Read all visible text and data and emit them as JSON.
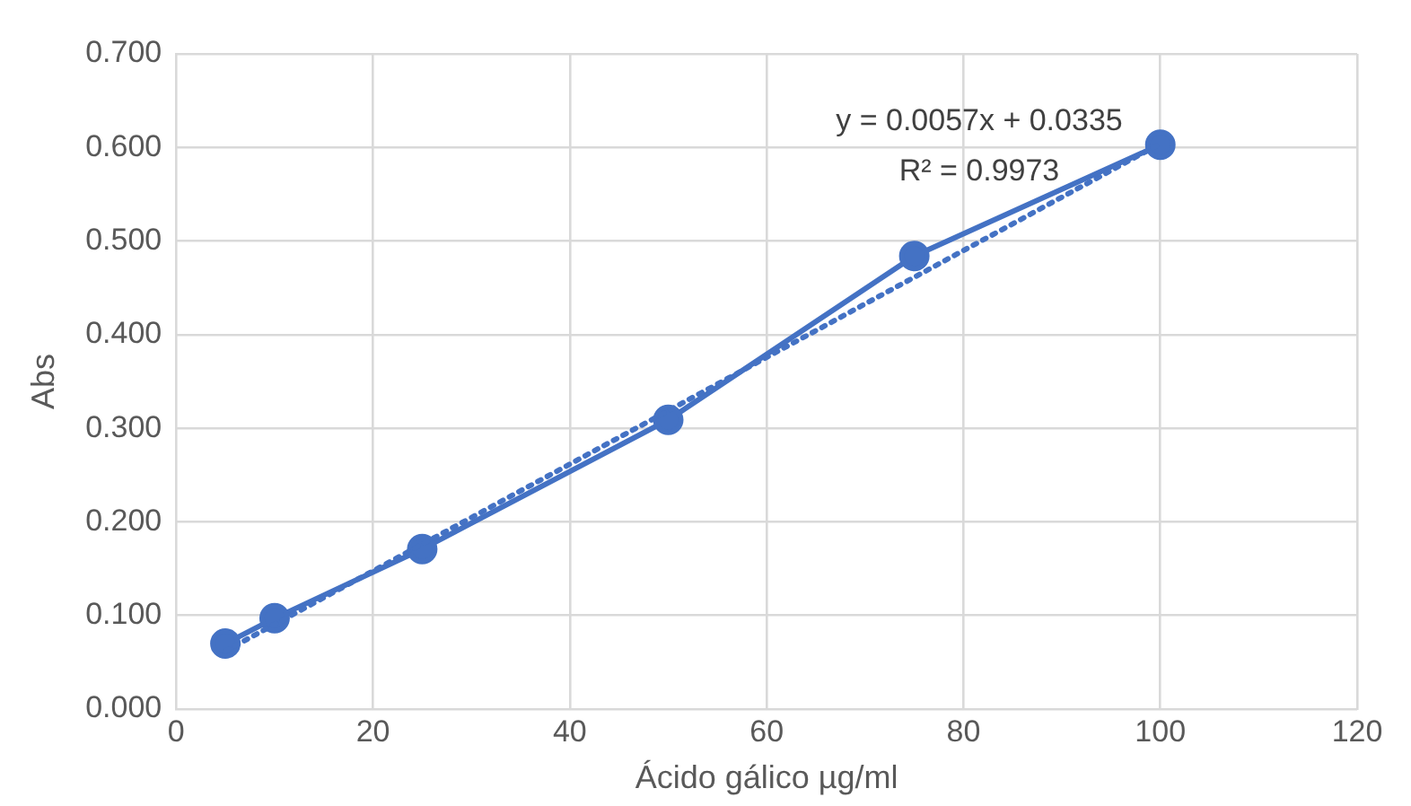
{
  "chart_data": {
    "type": "line",
    "xlabel": "Ácido gálico µg/ml",
    "ylabel": "Abs",
    "x": [
      5,
      10,
      25,
      50,
      75,
      100
    ],
    "series": [
      {
        "type": "line",
        "color": "#4472c4",
        "values": [
          0.07,
          0.097,
          0.171,
          0.309,
          0.484,
          0.603
        ],
        "marker": "circle",
        "line_style": "solid"
      },
      {
        "type": "line",
        "color": "#4472c4",
        "x": [
          5,
          100
        ],
        "values": [
          0.062,
          0.604
        ],
        "marker": "none",
        "line_style": "dotted"
      }
    ],
    "xlim": [
      0,
      120
    ],
    "xticks": [
      0,
      20,
      40,
      60,
      80,
      100,
      120
    ],
    "ylim": [
      0,
      0.7
    ],
    "yticks": [
      {
        "value": 0,
        "label": "0.000"
      },
      {
        "value": 0.1,
        "label": "0.100"
      },
      {
        "value": 0.2,
        "label": "0.200"
      },
      {
        "value": 0.3,
        "label": "0.300"
      },
      {
        "value": 0.4,
        "label": "0.400"
      },
      {
        "value": 0.5,
        "label": "0.500"
      },
      {
        "value": 0.6,
        "label": "0.600"
      },
      {
        "value": 0.7,
        "label": "0.700"
      }
    ],
    "grid": true,
    "annotations": [
      "y = 0.0057x + 0.0335",
      "R² = 0.9973"
    ]
  }
}
